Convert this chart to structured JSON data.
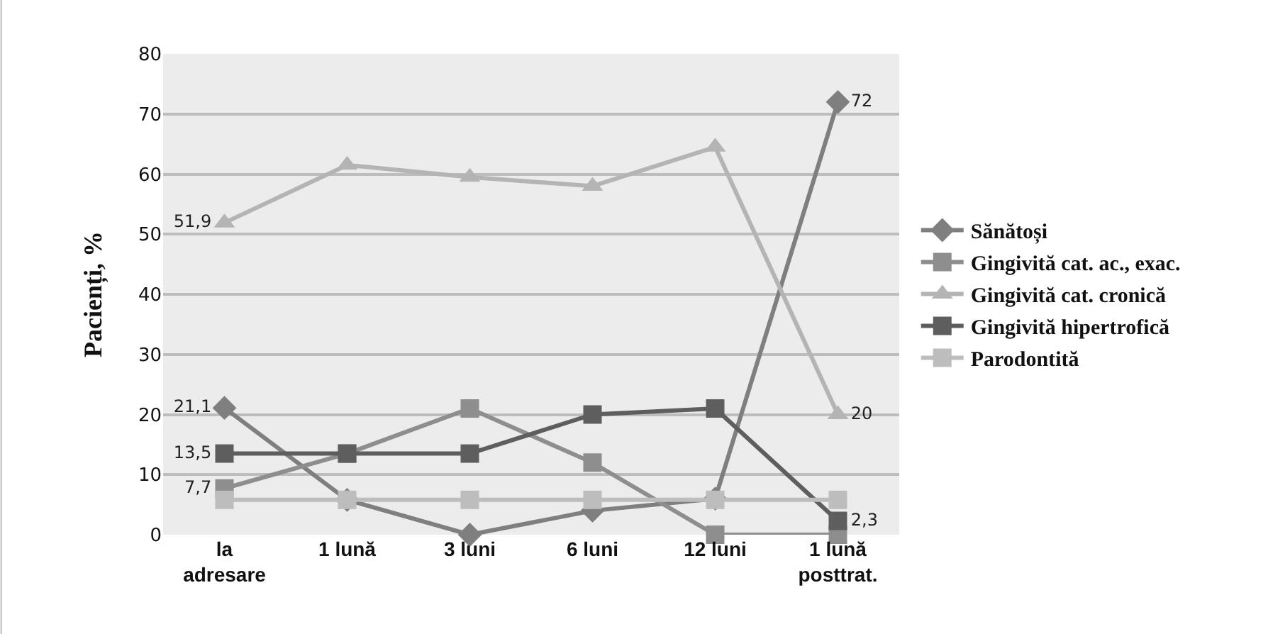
{
  "chart_data": {
    "type": "line",
    "ylabel": "Pacienți, %",
    "categories": [
      "la adresare",
      "1 lună",
      "3 luni",
      "6 luni",
      "12 luni",
      "1 lună posttrat."
    ],
    "ylim": [
      0,
      80
    ],
    "yticks": [
      0,
      10,
      20,
      30,
      40,
      50,
      60,
      70,
      80
    ],
    "grid": "y",
    "legend": "right",
    "series": [
      {
        "name": "Sănătoși",
        "color": "#7f7f7f",
        "marker": "diamond",
        "values": [
          21.1,
          5.8,
          0,
          4,
          6,
          72
        ],
        "value_labels": [
          "21,1",
          null,
          null,
          null,
          null,
          "72"
        ]
      },
      {
        "name": "Gingivită cat. ac., exac.",
        "color": "#8e8e8e",
        "marker": "square",
        "values": [
          7.7,
          13.5,
          21,
          12,
          0,
          0
        ],
        "value_labels": [
          "7,7",
          null,
          null,
          null,
          null,
          null
        ]
      },
      {
        "name": "Gingivită cat. cronică",
        "color": "#b4b4b4",
        "marker": "triangle",
        "values": [
          51.9,
          61.5,
          59.5,
          58,
          64.5,
          20
        ],
        "value_labels": [
          "51,9",
          null,
          null,
          null,
          null,
          "20"
        ]
      },
      {
        "name": "Gingivită hipertrofică",
        "color": "#5e5e5e",
        "marker": "square",
        "values": [
          13.5,
          13.5,
          13.5,
          20,
          21,
          2.3
        ],
        "value_labels": [
          "13,5",
          null,
          null,
          null,
          null,
          "2,3"
        ]
      },
      {
        "name": "Parodontită",
        "color": "#bdbdbd",
        "marker": "square",
        "values": [
          5.8,
          5.8,
          5.8,
          5.8,
          5.8,
          5.8
        ]
      }
    ]
  }
}
